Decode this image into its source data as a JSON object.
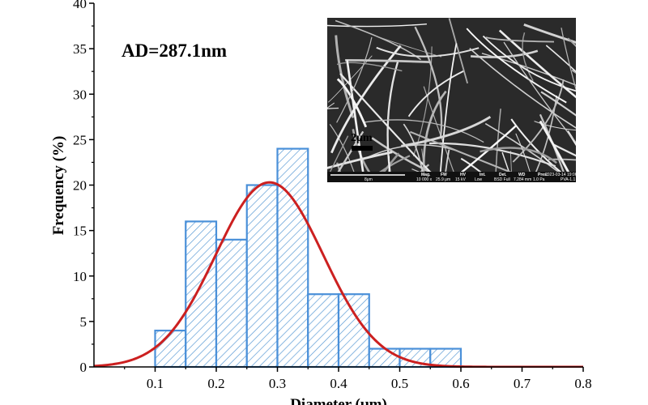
{
  "chart_data": {
    "type": "bar",
    "subtype": "histogram-with-normal-fit",
    "bins": [
      {
        "x0": 0.1,
        "x1": 0.15,
        "value": 4
      },
      {
        "x0": 0.15,
        "x1": 0.2,
        "value": 16
      },
      {
        "x0": 0.2,
        "x1": 0.25,
        "value": 14
      },
      {
        "x0": 0.25,
        "x1": 0.3,
        "value": 20
      },
      {
        "x0": 0.3,
        "x1": 0.35,
        "value": 24
      },
      {
        "x0": 0.35,
        "x1": 0.4,
        "value": 8
      },
      {
        "x0": 0.4,
        "x1": 0.45,
        "value": 8
      },
      {
        "x0": 0.45,
        "x1": 0.5,
        "value": 2
      },
      {
        "x0": 0.5,
        "x1": 0.55,
        "value": 2
      },
      {
        "x0": 0.55,
        "x1": 0.6,
        "value": 2
      }
    ],
    "fit_curve": {
      "type": "normal",
      "mean": 0.287,
      "sd": 0.088,
      "peak": 20.3
    },
    "xlim": [
      0,
      0.8
    ],
    "ylim": [
      0,
      40
    ],
    "xticks": [
      "0.1",
      "0.2",
      "0.3",
      "0.4",
      "0.5",
      "0.6",
      "0.7",
      "0.8"
    ],
    "yticks": [
      "0",
      "5",
      "10",
      "15",
      "20",
      "25",
      "30",
      "35",
      "40"
    ],
    "xlabel": "Diameter (μm)",
    "ylabel": "Frequency (%)",
    "annotation": "AD=287.1nm",
    "colors": {
      "bar_edge": "#4a90d9",
      "hatch": "#5b9bd5",
      "fit": "#cc2020"
    },
    "grid": false
  },
  "inset": {
    "scale_label": "2μm",
    "databar": {
      "scale_text": "8μm",
      "headers": [
        "Mag.",
        "FW",
        "HV",
        "Int.",
        "Det.",
        "WD",
        "Pres."
      ],
      "values": [
        "10 000 x",
        "25.9 μm",
        "15 kV",
        "Low",
        "BSD Full",
        "7.284 mm",
        "1.0 Pa"
      ],
      "timestamp": "2023-03-14 19:06",
      "sample": "PVA-1.1"
    }
  }
}
